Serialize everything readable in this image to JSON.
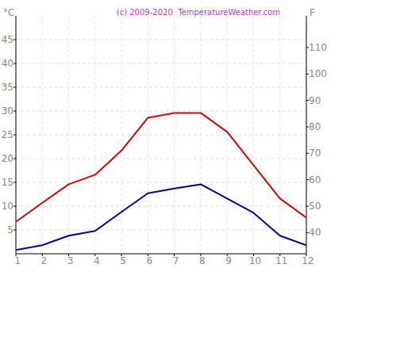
{
  "chart_data": {
    "type": "line",
    "title": "(c) 2009-2020  TemperatureWeather.com",
    "y_label": "°C",
    "y2_label": "F",
    "x": [
      1,
      2,
      3,
      4,
      5,
      6,
      7,
      8,
      9,
      10,
      11,
      12
    ],
    "xlim": [
      1,
      12
    ],
    "xticks": [
      1,
      2,
      3,
      4,
      5,
      6,
      7,
      8,
      9,
      10,
      11,
      12
    ],
    "ylim": [
      0,
      50
    ],
    "yticks": [
      5,
      10,
      15,
      20,
      25,
      30,
      35,
      40,
      45
    ],
    "y2lim": [
      32,
      122
    ],
    "y2ticks": [
      40,
      50,
      60,
      70,
      80,
      90,
      100,
      110
    ],
    "grid": true,
    "series": [
      {
        "color": "#dd0000",
        "values": [
          6.7,
          10.7,
          14.6,
          16.6,
          21.7,
          28.6,
          29.6,
          29.6,
          25.6,
          18.6,
          11.6,
          7.6
        ]
      },
      {
        "color": "#000099",
        "values": [
          0.8,
          1.8,
          3.8,
          4.8,
          8.8,
          12.7,
          13.7,
          14.6,
          11.6,
          8.6,
          3.8,
          1.8
        ]
      }
    ]
  }
}
